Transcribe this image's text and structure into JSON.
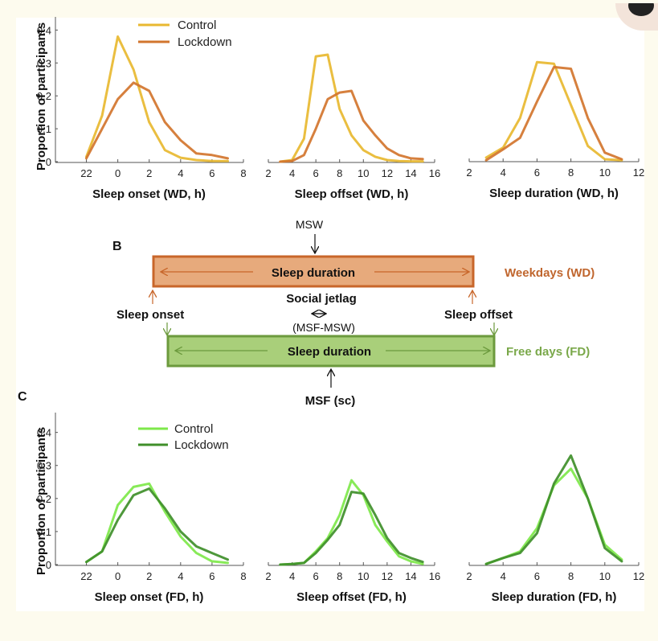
{
  "panels": {
    "b_label": "B",
    "c_label": "C"
  },
  "colors": {
    "wd_control": "#e8b830",
    "wd_lockdown": "#d2752e",
    "fd_control": "#7ee84a",
    "fd_lockdown": "#3f8f2a",
    "wd_box_fill": "#e7aa7c",
    "wd_box_stroke": "#c8662a",
    "fd_box_fill": "#a9cf7a",
    "fd_box_stroke": "#6c9a3d",
    "wd_text": "#c0662e",
    "fd_text": "#7aa84a"
  },
  "legend_top": {
    "control": "Control",
    "lockdown": "Lockdown"
  },
  "legend_bottom": {
    "control": "Control",
    "lockdown": "Lockdown"
  },
  "ylabel_top": "Proportion of participants",
  "ylabel_bottom": "Proportion of participants",
  "diagram": {
    "msw": "MSW",
    "wd_duration": "Sleep duration",
    "wd_label": "Weekdays (WD)",
    "sleep_onset": "Sleep onset",
    "sleep_offset": "Sleep offset",
    "social_jetlag": "Social jetlag",
    "msf_msw": "(MSF-MSW)",
    "fd_duration": "Sleep duration",
    "fd_label": "Free days (FD)",
    "msf": "MSF (sc)"
  },
  "chart_data": [
    {
      "id": "wd-onset",
      "type": "line",
      "title": "",
      "xlabel": "Sleep onset (WD, h)",
      "ylabel": "Proportion of participants",
      "x": [
        22,
        23,
        24,
        25,
        26,
        27,
        28,
        29,
        30,
        31
      ],
      "xticks": [
        22,
        24,
        26,
        28,
        30,
        32
      ],
      "xticklabels": [
        "22",
        "0",
        "2",
        "4",
        "6",
        "8"
      ],
      "xlim": [
        21,
        32
      ],
      "ylim": [
        0,
        0.44
      ],
      "yticks": [
        0,
        0.1,
        0.2,
        0.3,
        0.4
      ],
      "yticklabels": [
        "0",
        "0.1",
        "0.2",
        "0.3",
        "0.4"
      ],
      "legend": "top-right",
      "series": [
        {
          "name": "Control",
          "color_key": "wd_control",
          "values": [
            0.015,
            0.14,
            0.38,
            0.28,
            0.12,
            0.035,
            0.012,
            0.005,
            0.002,
            0.002
          ]
        },
        {
          "name": "Lockdown",
          "color_key": "wd_lockdown",
          "values": [
            0.01,
            0.1,
            0.19,
            0.24,
            0.215,
            0.12,
            0.065,
            0.025,
            0.02,
            0.01
          ]
        }
      ]
    },
    {
      "id": "wd-offset",
      "type": "line",
      "title": "",
      "xlabel": "Sleep offset (WD, h)",
      "ylabel": "",
      "x": [
        3,
        4,
        5,
        6,
        7,
        8,
        9,
        10,
        11,
        12,
        13,
        14,
        15
      ],
      "xticks": [
        2,
        4,
        6,
        8,
        10,
        12,
        14,
        16
      ],
      "xticklabels": [
        "2",
        "4",
        "6",
        "8",
        "10",
        "12",
        "14",
        "16"
      ],
      "xlim": [
        2,
        16
      ],
      "ylim": [
        0,
        0.44
      ],
      "series": [
        {
          "name": "Control",
          "color_key": "wd_control",
          "values": [
            0,
            0.005,
            0.07,
            0.32,
            0.325,
            0.16,
            0.08,
            0.035,
            0.015,
            0.005,
            0.002,
            0.001,
            0.001
          ]
        },
        {
          "name": "Lockdown",
          "color_key": "wd_lockdown",
          "values": [
            0,
            0.002,
            0.02,
            0.1,
            0.19,
            0.21,
            0.215,
            0.125,
            0.08,
            0.04,
            0.02,
            0.01,
            0.008
          ]
        }
      ]
    },
    {
      "id": "wd-duration",
      "type": "line",
      "title": "",
      "xlabel": "Sleep duration (WD, h)",
      "ylabel": "",
      "x": [
        3,
        4,
        5,
        6,
        7,
        8,
        9,
        10,
        11
      ],
      "xticks": [
        2,
        4,
        6,
        8,
        10,
        12
      ],
      "xticklabels": [
        "2",
        "4",
        "6",
        "8",
        "10",
        "12"
      ],
      "xlim": [
        2,
        12
      ],
      "ylim": [
        0,
        0.44
      ],
      "series": [
        {
          "name": "Control",
          "color_key": "wd_control",
          "values": [
            0.01,
            0.04,
            0.13,
            0.3,
            0.295,
            0.17,
            0.045,
            0.005,
            0.002
          ]
        },
        {
          "name": "Lockdown",
          "color_key": "wd_lockdown",
          "values": [
            0.002,
            0.035,
            0.07,
            0.18,
            0.285,
            0.28,
            0.13,
            0.025,
            0.005
          ]
        }
      ]
    },
    {
      "id": "fd-onset",
      "type": "line",
      "title": "",
      "xlabel": "Sleep onset (FD, h)",
      "ylabel": "Proportion of participants",
      "x": [
        22,
        23,
        24,
        25,
        26,
        27,
        28,
        29,
        30,
        31
      ],
      "xticks": [
        22,
        24,
        26,
        28,
        30,
        32
      ],
      "xticklabels": [
        "22",
        "0",
        "2",
        "4",
        "6",
        "8"
      ],
      "xlim": [
        21,
        32
      ],
      "ylim": [
        0,
        0.46
      ],
      "yticks": [
        0,
        0.1,
        0.2,
        0.3,
        0.4
      ],
      "yticklabels": [
        "0",
        "0.1",
        "0.2",
        "0.3",
        "0.4"
      ],
      "legend": "top-right",
      "series": [
        {
          "name": "Control",
          "color_key": "fd_control",
          "values": [
            0.008,
            0.04,
            0.18,
            0.235,
            0.245,
            0.16,
            0.085,
            0.035,
            0.01,
            0.005
          ]
        },
        {
          "name": "Lockdown",
          "color_key": "fd_lockdown",
          "values": [
            0.008,
            0.04,
            0.135,
            0.21,
            0.23,
            0.17,
            0.1,
            0.055,
            0.035,
            0.015
          ]
        }
      ]
    },
    {
      "id": "fd-offset",
      "type": "line",
      "title": "",
      "xlabel": "Sleep offset (FD, h)",
      "ylabel": "",
      "x": [
        3,
        4,
        5,
        6,
        7,
        8,
        9,
        10,
        11,
        12,
        13,
        14,
        15
      ],
      "xticks": [
        2,
        4,
        6,
        8,
        10,
        12,
        14,
        16
      ],
      "xticklabels": [
        "2",
        "4",
        "6",
        "8",
        "10",
        "12",
        "14",
        "16"
      ],
      "xlim": [
        2,
        16
      ],
      "ylim": [
        0,
        0.46
      ],
      "series": [
        {
          "name": "Control",
          "color_key": "fd_control",
          "values": [
            0,
            0.002,
            0.005,
            0.04,
            0.08,
            0.15,
            0.255,
            0.21,
            0.12,
            0.07,
            0.025,
            0.01,
            0.002
          ]
        },
        {
          "name": "Lockdown",
          "color_key": "fd_lockdown",
          "values": [
            0,
            0.002,
            0.005,
            0.035,
            0.075,
            0.12,
            0.22,
            0.215,
            0.15,
            0.08,
            0.035,
            0.02,
            0.008
          ]
        }
      ]
    },
    {
      "id": "fd-duration",
      "type": "line",
      "title": "",
      "xlabel": "Sleep duration (FD, h)",
      "ylabel": "",
      "x": [
        3,
        4,
        5,
        6,
        7,
        8,
        9,
        10,
        11
      ],
      "xticks": [
        2,
        4,
        6,
        8,
        10,
        12
      ],
      "xticklabels": [
        "2",
        "4",
        "6",
        "8",
        "10",
        "12"
      ],
      "xlim": [
        2,
        12
      ],
      "ylim": [
        0,
        0.46
      ],
      "series": [
        {
          "name": "Control",
          "color_key": "fd_control",
          "values": [
            0.002,
            0.02,
            0.04,
            0.11,
            0.24,
            0.29,
            0.2,
            0.06,
            0.015
          ]
        },
        {
          "name": "Lockdown",
          "color_key": "fd_lockdown",
          "values": [
            0.002,
            0.02,
            0.035,
            0.095,
            0.245,
            0.33,
            0.2,
            0.05,
            0.01
          ]
        }
      ]
    }
  ]
}
